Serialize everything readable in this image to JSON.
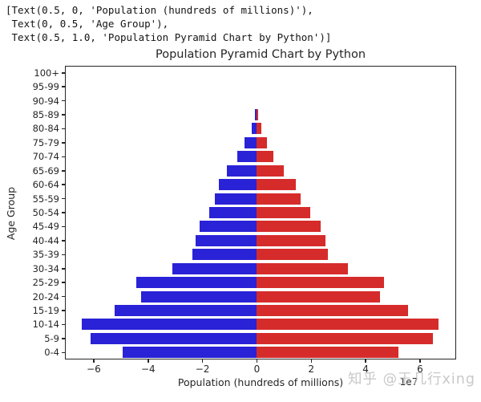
{
  "console_output": {
    "lines": [
      "[Text(0.5, 0, 'Population (hundreds of millions)'),",
      " Text(0, 0.5, 'Age Group'),",
      " Text(0.5, 1.0, 'Population Pyramid Chart by Python')]"
    ]
  },
  "watermark": {
    "text": "知乎 @王几行xing"
  },
  "chart_data": {
    "type": "bar",
    "orientation": "horizontal",
    "subtype": "population-pyramid",
    "title": "Population Pyramid Chart by Python",
    "xlabel": "Population (hundreds of millions)",
    "ylabel": "Age Group",
    "x_offset_label": "1e7",
    "unit_multiplier": 10000000,
    "grid": false,
    "legend": "none",
    "categories": [
      "0-4",
      "5-9",
      "10-14",
      "15-19",
      "20-24",
      "25-29",
      "30-34",
      "35-39",
      "40-44",
      "45-49",
      "50-54",
      "55-59",
      "60-64",
      "65-69",
      "70-74",
      "75-79",
      "80-84",
      "85-89",
      "90-94",
      "95-99",
      "100+"
    ],
    "series": [
      {
        "name": "left-side (blue, plotted negative)",
        "color": "#2a22d6",
        "values": [
          -4.93,
          -6.11,
          -6.45,
          -5.22,
          -4.26,
          -4.43,
          -3.12,
          -2.37,
          -2.25,
          -2.1,
          -1.76,
          -1.54,
          -1.41,
          -1.11,
          -0.72,
          -0.45,
          -0.18,
          -0.06,
          0,
          0,
          0
        ]
      },
      {
        "name": "right-side (red, plotted positive)",
        "color": "#d62b2b",
        "values": [
          5.2,
          6.47,
          6.67,
          5.56,
          4.53,
          4.69,
          3.35,
          2.62,
          2.52,
          2.35,
          1.97,
          1.6,
          1.42,
          1.0,
          0.6,
          0.38,
          0.18,
          0.04,
          0,
          0,
          0
        ]
      }
    ],
    "x_ticks": [
      -6,
      -4,
      -2,
      0,
      2,
      4,
      6
    ],
    "xlim": [
      -7.06,
      7.33
    ]
  }
}
